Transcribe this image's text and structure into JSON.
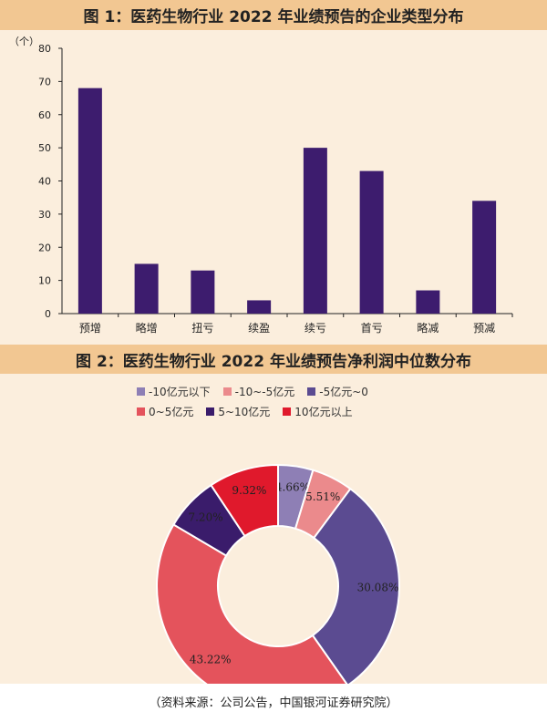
{
  "chart_data": [
    {
      "type": "bar",
      "title": "图 1：医药生物行业 2022 年业绩预告的企业类型分布",
      "ylabel": "（个）",
      "categories": [
        "预增",
        "略增",
        "扭亏",
        "续盈",
        "续亏",
        "首亏",
        "略减",
        "预减"
      ],
      "values": [
        68,
        15,
        13,
        4,
        50,
        43,
        7,
        34
      ],
      "yticks": [
        "0",
        "10",
        "20",
        "30",
        "40",
        "50",
        "60",
        "70",
        "80"
      ],
      "ylim": [
        0,
        80
      ],
      "grid": false,
      "bar_color": "#3d1c6e"
    },
    {
      "type": "pie",
      "title": "图 2：医药生物行业 2022 年业绩预告净利润中位数分布",
      "legend_position": "top",
      "slices": [
        {
          "label": "-10亿元以下",
          "value": 4.66,
          "value_label": "4.66%",
          "color": "#8e7fb5"
        },
        {
          "label": "-10~-5亿元",
          "value": 5.51,
          "value_label": "5.51%",
          "color": "#eb8a8c"
        },
        {
          "label": "-5亿元~0",
          "value": 30.08,
          "value_label": "30.08%",
          "color": "#5b4b91"
        },
        {
          "label": "0~5亿元",
          "value": 43.22,
          "value_label": "43.22%",
          "color": "#e4535c"
        },
        {
          "label": "5~10亿元",
          "value": 7.2,
          "value_label": "7.20%",
          "color": "#3a1c6b"
        },
        {
          "label": "10亿元以上",
          "value": 9.32,
          "value_label": "9.32%",
          "color": "#e0192c"
        }
      ]
    }
  ],
  "source": "（资料来源：公司公告，中国银河证券研究院）"
}
